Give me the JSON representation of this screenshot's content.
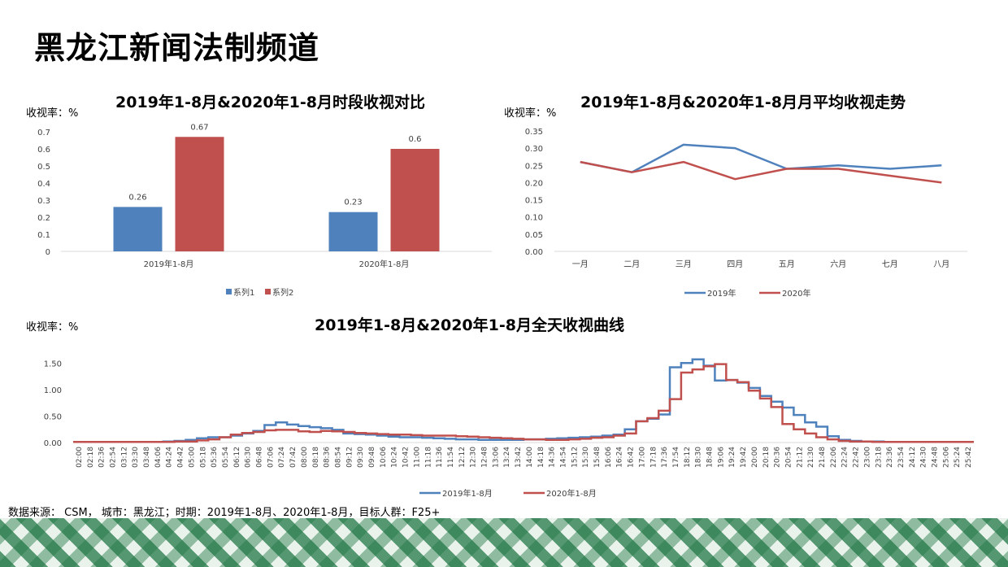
{
  "page": {
    "title": "黑龙江新闻法制频道",
    "footer": "数据来源： CSM， 城市：黑龙江；时期：2019年1-8月、2020年1-8月，目标人群：F25+"
  },
  "charts": {
    "bar": {
      "title": "2019年1-8月&2020年1-8月时段收视对比",
      "unit": "收视率：%"
    },
    "line": {
      "title": "2019年1-8月&2020年1-8月月平均收视走势",
      "unit": "收视率：%"
    },
    "day": {
      "title": "2019年1-8月&2020年1-8月全天收视曲线",
      "unit": "收视率：%"
    }
  },
  "colors": {
    "series_blue": "#4f81bd",
    "series_red": "#c0504d"
  },
  "chart_data": [
    {
      "type": "bar",
      "title": "2019年1-8月&2020年1-8月时段收视对比",
      "ylabel": "收视率：%",
      "categories": [
        "2019年1-8月",
        "2020年1-8月"
      ],
      "series": [
        {
          "name": "系列1",
          "values": [
            0.26,
            0.23
          ]
        },
        {
          "name": "系列2",
          "values": [
            0.67,
            0.6
          ]
        }
      ],
      "ylim": [
        0,
        0.7
      ],
      "yticks": [
        "0",
        "0.1",
        "0.2",
        "0.3",
        "0.4",
        "0.5",
        "0.6",
        "0.7"
      ],
      "grid": false,
      "legend": "bottom"
    },
    {
      "type": "line",
      "title": "2019年1-8月&2020年1-8月月平均收视走势",
      "ylabel": "收视率：%",
      "categories": [
        "一月",
        "二月",
        "三月",
        "四月",
        "五月",
        "六月",
        "七月",
        "八月"
      ],
      "series": [
        {
          "name": "2019年",
          "values": [
            0.26,
            0.23,
            0.31,
            0.3,
            0.24,
            0.25,
            0.24,
            0.25
          ]
        },
        {
          "name": "2020年",
          "values": [
            0.26,
            0.23,
            0.26,
            0.21,
            0.24,
            0.24,
            0.22,
            0.2
          ]
        }
      ],
      "ylim": [
        0,
        0.35
      ],
      "yticks": [
        "0.00",
        "0.05",
        "0.10",
        "0.15",
        "0.20",
        "0.25",
        "0.30",
        "0.35"
      ],
      "grid": false,
      "legend": "bottom"
    },
    {
      "type": "line",
      "step": true,
      "title": "2019年1-8月&2020年1-8月全天收视曲线",
      "ylabel": "收视率：%",
      "x": [
        "02:00",
        "02:18",
        "02:36",
        "02:54",
        "03:12",
        "03:30",
        "03:48",
        "04:06",
        "04:24",
        "04:42",
        "05:00",
        "05:18",
        "05:36",
        "05:54",
        "06:12",
        "06:30",
        "06:48",
        "07:06",
        "07:24",
        "07:42",
        "08:00",
        "08:18",
        "08:36",
        "08:54",
        "09:12",
        "09:30",
        "09:48",
        "10:06",
        "10:24",
        "10:42",
        "11:00",
        "11:18",
        "11:36",
        "11:54",
        "12:12",
        "12:30",
        "12:48",
        "13:06",
        "13:24",
        "13:42",
        "14:00",
        "14:18",
        "14:36",
        "14:54",
        "15:12",
        "15:30",
        "15:48",
        "16:06",
        "16:24",
        "16:42",
        "17:00",
        "17:18",
        "17:36",
        "17:54",
        "18:12",
        "18:30",
        "18:48",
        "19:06",
        "19:24",
        "19:42",
        "20:00",
        "20:18",
        "20:36",
        "20:54",
        "21:12",
        "21:30",
        "21:48",
        "22:06",
        "22:24",
        "22:42",
        "23:00",
        "23:18",
        "23:36",
        "23:54",
        "24:12",
        "24:30",
        "24:48",
        "25:06",
        "25:24",
        "25:42"
      ],
      "series": [
        {
          "name": "2019年1-8月",
          "values": [
            0.01,
            0.01,
            0.01,
            0.01,
            0.01,
            0.01,
            0.01,
            0.01,
            0.02,
            0.03,
            0.05,
            0.08,
            0.1,
            0.1,
            0.13,
            0.17,
            0.22,
            0.33,
            0.38,
            0.34,
            0.31,
            0.29,
            0.27,
            0.24,
            0.17,
            0.16,
            0.15,
            0.13,
            0.11,
            0.1,
            0.1,
            0.09,
            0.08,
            0.07,
            0.06,
            0.06,
            0.05,
            0.05,
            0.05,
            0.05,
            0.06,
            0.06,
            0.07,
            0.08,
            0.09,
            0.1,
            0.11,
            0.13,
            0.15,
            0.25,
            0.4,
            0.45,
            0.53,
            1.42,
            1.5,
            1.57,
            1.45,
            1.17,
            1.18,
            1.13,
            1.03,
            0.88,
            0.77,
            0.66,
            0.52,
            0.38,
            0.3,
            0.12,
            0.05,
            0.03,
            0.02,
            0.02,
            0.01,
            0.01,
            0.01,
            0.01,
            0.01,
            0.01,
            0.01,
            0.01
          ]
        },
        {
          "name": "2020年1-8月",
          "values": [
            0.01,
            0.01,
            0.01,
            0.01,
            0.01,
            0.01,
            0.01,
            0.01,
            0.01,
            0.02,
            0.02,
            0.04,
            0.06,
            0.1,
            0.15,
            0.18,
            0.2,
            0.23,
            0.24,
            0.24,
            0.21,
            0.2,
            0.22,
            0.21,
            0.2,
            0.18,
            0.17,
            0.16,
            0.15,
            0.15,
            0.14,
            0.13,
            0.13,
            0.13,
            0.12,
            0.11,
            0.1,
            0.09,
            0.08,
            0.07,
            0.06,
            0.06,
            0.05,
            0.05,
            0.06,
            0.07,
            0.09,
            0.1,
            0.13,
            0.17,
            0.4,
            0.46,
            0.6,
            0.82,
            1.32,
            1.38,
            1.44,
            1.48,
            1.18,
            1.14,
            0.98,
            0.83,
            0.67,
            0.35,
            0.25,
            0.17,
            0.1,
            0.06,
            0.03,
            0.02,
            0.02,
            0.01,
            0.01,
            0.01,
            0.01,
            0.01,
            0.01,
            0.01,
            0.01,
            0.01
          ]
        }
      ],
      "ylim": [
        0,
        1.75
      ],
      "yticks": [
        "0.00",
        "0.50",
        "1.00",
        "1.50"
      ],
      "grid": false,
      "legend": "bottom"
    }
  ]
}
